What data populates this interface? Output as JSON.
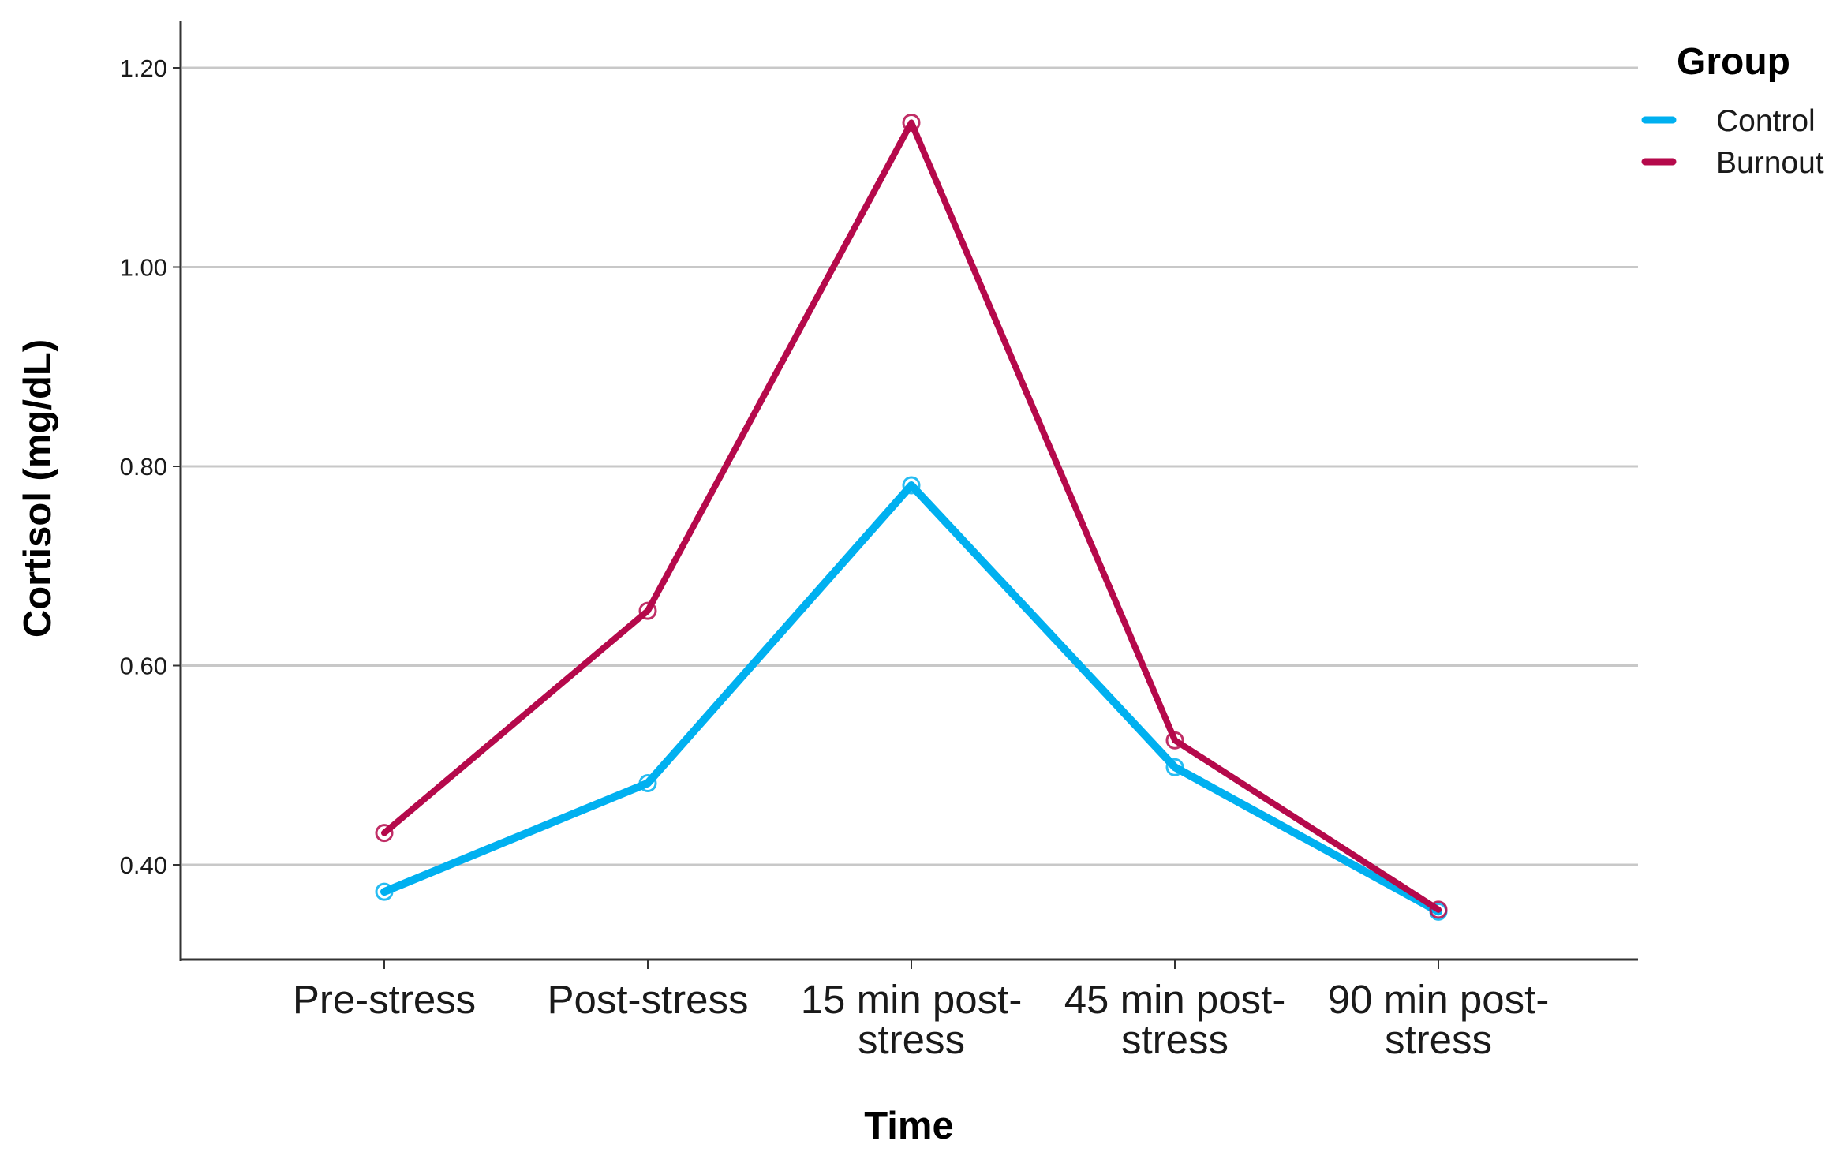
{
  "chart_data": {
    "type": "line",
    "title": "",
    "xlabel": "Time",
    "ylabel": "Cortisol (mg/dL)",
    "categories": [
      [
        "Pre-stress"
      ],
      [
        "Post-stress"
      ],
      [
        "15 min post-",
        "stress"
      ],
      [
        "45 min post-",
        "stress"
      ],
      [
        "90 min post-",
        "stress"
      ]
    ],
    "ylim": [
      0.31,
      1.25
    ],
    "yticks": [
      0.4,
      0.6,
      0.8,
      1.0,
      1.2
    ],
    "ytick_labels": [
      "0.40",
      "0.60",
      "0.80",
      "1.00",
      "1.20"
    ],
    "grid": true,
    "legend": {
      "title": "Group",
      "position": "top-right"
    },
    "series": [
      {
        "name": "Control",
        "color": "#00b0f0",
        "values": [
          0.373,
          0.482,
          0.781,
          0.498,
          0.353
        ]
      },
      {
        "name": "Burnout",
        "color": "#b5094b",
        "values": [
          0.432,
          0.655,
          1.145,
          0.525,
          0.355
        ]
      }
    ]
  }
}
